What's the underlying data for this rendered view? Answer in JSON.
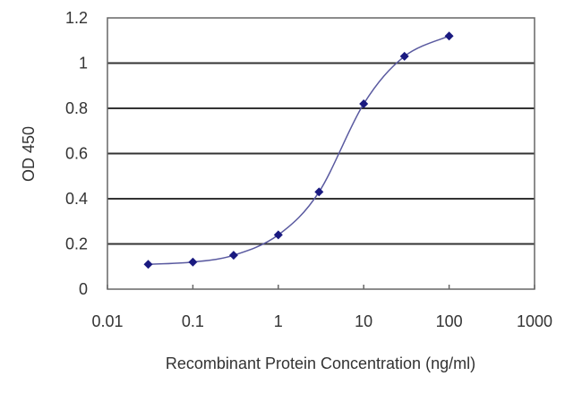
{
  "chart_data": {
    "type": "line",
    "title": "",
    "xlabel": "Recombinant Protein Concentration (ng/ml)",
    "ylabel": "OD 450",
    "x_scale": "log",
    "xlim": [
      0.01,
      1000
    ],
    "ylim": [
      0,
      1.2
    ],
    "x_ticks": [
      "0.01",
      "0.1",
      "1",
      "10",
      "100",
      "1000"
    ],
    "y_ticks": [
      "0",
      "0.2",
      "0.4",
      "0.6",
      "0.8",
      "1",
      "1.2"
    ],
    "grid": "horizontal",
    "series": [
      {
        "x": [
          0.03,
          0.1,
          0.3,
          1,
          3,
          10,
          30,
          100
        ],
        "y": [
          0.11,
          0.12,
          0.15,
          0.24,
          0.43,
          0.82,
          1.03,
          1.12
        ]
      }
    ],
    "colors": {
      "line": "#5a5aa0",
      "marker": "#1a1a80",
      "grid": "#333333"
    }
  }
}
